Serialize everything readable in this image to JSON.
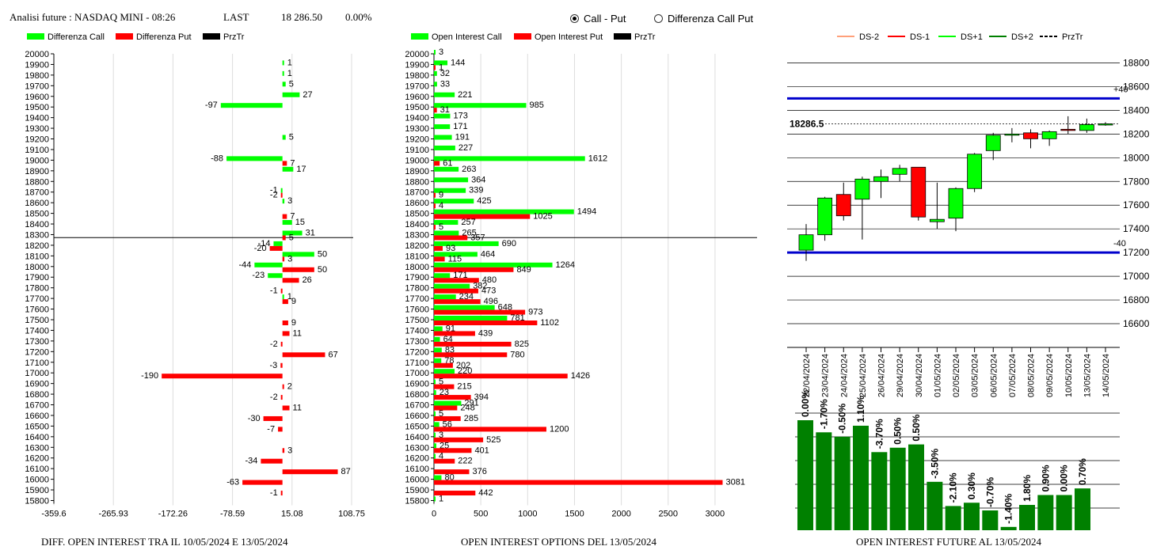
{
  "header": {
    "title": "Analisi future : NASDAQ MINI - 08:26",
    "last_label": "LAST",
    "last_value": "18 286.50",
    "change": "0.00%"
  },
  "radio": {
    "option1": "Call - Put",
    "option2": "Differenza Call Put",
    "selected": "Call - Put"
  },
  "captions": {
    "left": "DIFF. OPEN INTEREST TRA IL 10/05/2024 E 13/05/2024",
    "middle": "OPEN INTEREST OPTIONS DEL 13/05/2024",
    "right": "OPEN INTEREST FUTURE AL 13/05/2024"
  },
  "colors": {
    "call": "#00ff00",
    "put": "#ff0000",
    "price": "#000000",
    "green_dark": "#008000",
    "band": "#0000cc",
    "ds_minus2": "#ffa07a"
  },
  "chart_data": [
    {
      "type": "bar",
      "orientation": "horizontal",
      "legend": [
        "Differenza Call",
        "Differenza Put",
        "PrzTr"
      ],
      "strikes": [
        20000,
        19900,
        19800,
        19700,
        19600,
        19500,
        19400,
        19300,
        19200,
        19100,
        19000,
        18900,
        18800,
        18700,
        18600,
        18500,
        18400,
        18300,
        18200,
        18100,
        18000,
        17900,
        17800,
        17700,
        17600,
        17500,
        17400,
        17300,
        17200,
        17100,
        17000,
        16900,
        16800,
        16700,
        16600,
        16500,
        16400,
        16300,
        16200,
        16100,
        16000,
        15900,
        15800
      ],
      "series": [
        {
          "name": "Differenza Call",
          "values": [
            null,
            1,
            1,
            5,
            27,
            -97,
            null,
            null,
            5,
            null,
            -88,
            17,
            null,
            -1,
            3,
            null,
            15,
            31,
            -14,
            50,
            -44,
            -23,
            null,
            1,
            null,
            null,
            null,
            null,
            null,
            null,
            null,
            null,
            null,
            null,
            null,
            null,
            null,
            null,
            null,
            null,
            null,
            null,
            null
          ]
        },
        {
          "name": "Differenza Put",
          "values": [
            null,
            null,
            null,
            null,
            null,
            null,
            null,
            null,
            null,
            null,
            7,
            null,
            null,
            -2,
            null,
            7,
            null,
            5,
            -20,
            3,
            50,
            26,
            -1,
            9,
            null,
            9,
            11,
            -2,
            67,
            -3,
            -190,
            2,
            -2,
            11,
            -30,
            -7,
            null,
            3,
            -34,
            87,
            -63,
            -1,
            null
          ]
        }
      ],
      "price_level": 18286.5,
      "x_ticks": [
        "-359.6",
        "-265.93",
        "-172.26",
        "-78.59",
        "15.08",
        "108.75"
      ],
      "xlim": [
        -359.6,
        108.75
      ]
    },
    {
      "type": "bar",
      "orientation": "horizontal",
      "legend": [
        "Open Interest Call",
        "Open Interest Put",
        "PrzTr"
      ],
      "strikes": [
        20000,
        19900,
        19800,
        19700,
        19600,
        19500,
        19400,
        19300,
        19200,
        19100,
        19000,
        18900,
        18800,
        18700,
        18600,
        18500,
        18400,
        18300,
        18200,
        18100,
        18000,
        17900,
        17800,
        17700,
        17600,
        17500,
        17400,
        17300,
        17200,
        17100,
        17000,
        16900,
        16800,
        16700,
        16600,
        16500,
        16400,
        16300,
        16200,
        16100,
        16000,
        15900,
        15800
      ],
      "series": [
        {
          "name": "Open Interest Call",
          "values": [
            3,
            144,
            32,
            33,
            221,
            985,
            173,
            171,
            191,
            227,
            1612,
            263,
            364,
            339,
            425,
            1494,
            257,
            265,
            690,
            464,
            1264,
            171,
            382,
            234,
            648,
            781,
            91,
            64,
            83,
            78,
            220,
            5,
            23,
            291,
            5,
            56,
            3,
            25,
            4,
            null,
            80,
            null,
            1
          ]
        },
        {
          "name": "Open Interest Put",
          "values": [
            null,
            1,
            null,
            null,
            null,
            31,
            null,
            null,
            null,
            null,
            61,
            null,
            null,
            9,
            4,
            1025,
            5,
            357,
            93,
            115,
            849,
            480,
            473,
            496,
            973,
            1102,
            439,
            825,
            780,
            202,
            1426,
            215,
            394,
            248,
            285,
            1200,
            525,
            401,
            222,
            376,
            3081,
            442,
            null
          ]
        }
      ],
      "price_level": 18286.5,
      "x_ticks": [
        "0",
        "500",
        "1000",
        "1500",
        "2000",
        "2500",
        "3000"
      ],
      "xlim": [
        0,
        3250
      ]
    },
    {
      "type": "candlestick",
      "legend": [
        "DS-2",
        "DS-1",
        "DS+1",
        "DS+2",
        "PrzTr"
      ],
      "dates": [
        "22/04/2024",
        "23/04/2024",
        "24/04/2024",
        "25/04/2024",
        "26/04/2024",
        "29/04/2024",
        "30/04/2024",
        "01/05/2024",
        "02/05/2024",
        "03/05/2024",
        "06/05/2024",
        "07/05/2024",
        "08/05/2024",
        "09/05/2024",
        "10/05/2024",
        "13/05/2024",
        "14/05/2024"
      ],
      "ohlc": [
        [
          17220,
          17440,
          17130,
          17350
        ],
        [
          17350,
          17670,
          17300,
          17660
        ],
        [
          17690,
          17790,
          17470,
          17510
        ],
        [
          17650,
          17840,
          17310,
          17820
        ],
        [
          17800,
          17900,
          17660,
          17840
        ],
        [
          17860,
          17940,
          17800,
          17910
        ],
        [
          17920,
          17920,
          17470,
          17500
        ],
        [
          17460,
          17790,
          17400,
          17480
        ],
        [
          17490,
          17750,
          17380,
          17740
        ],
        [
          17740,
          18040,
          17710,
          18030
        ],
        [
          18060,
          18210,
          17980,
          18190
        ],
        [
          18190,
          18250,
          18130,
          18200
        ],
        [
          18210,
          18240,
          18080,
          18160
        ],
        [
          18160,
          18230,
          18100,
          18220
        ],
        [
          18240,
          18350,
          18200,
          18230
        ],
        [
          18230,
          18330,
          18210,
          18280
        ],
        [
          18286,
          18300,
          18270,
          18286
        ]
      ],
      "price_label": "18286.5",
      "band_upper": 18500,
      "band_lower": 17200,
      "band_upper_label": "+40",
      "band_lower_label": "-40",
      "y_ticks": [
        "18800",
        "18600",
        "18400",
        "18200",
        "18000",
        "17800",
        "17600",
        "17400",
        "17200",
        "17000",
        "16800",
        "16600"
      ],
      "ylim": [
        16600,
        18850
      ]
    },
    {
      "type": "bar",
      "categories": [
        "22/04/2024",
        "23/04/2024",
        "24/04/2024",
        "25/04/2024",
        "26/04/2024",
        "29/04/2024",
        "30/04/2024",
        "01/05/2024",
        "02/05/2024",
        "03/05/2024",
        "06/05/2024",
        "07/05/2024",
        "08/05/2024",
        "09/05/2024",
        "10/05/2024",
        "13/05/2024"
      ],
      "values": [
        100,
        89,
        85,
        95,
        71,
        75,
        78,
        44,
        22,
        25,
        18,
        3,
        23,
        32,
        32,
        38
      ],
      "labels": [
        "0.00%",
        "-1.70%",
        "-0.50%",
        "1.10%",
        "-3.70%",
        "0.50%",
        "0.50%",
        "-3.50%",
        "-2.10%",
        "0.30%",
        "-0.70%",
        "-1.40%",
        "1.80%",
        "0.90%",
        "0.00%",
        "0.70%"
      ]
    }
  ]
}
